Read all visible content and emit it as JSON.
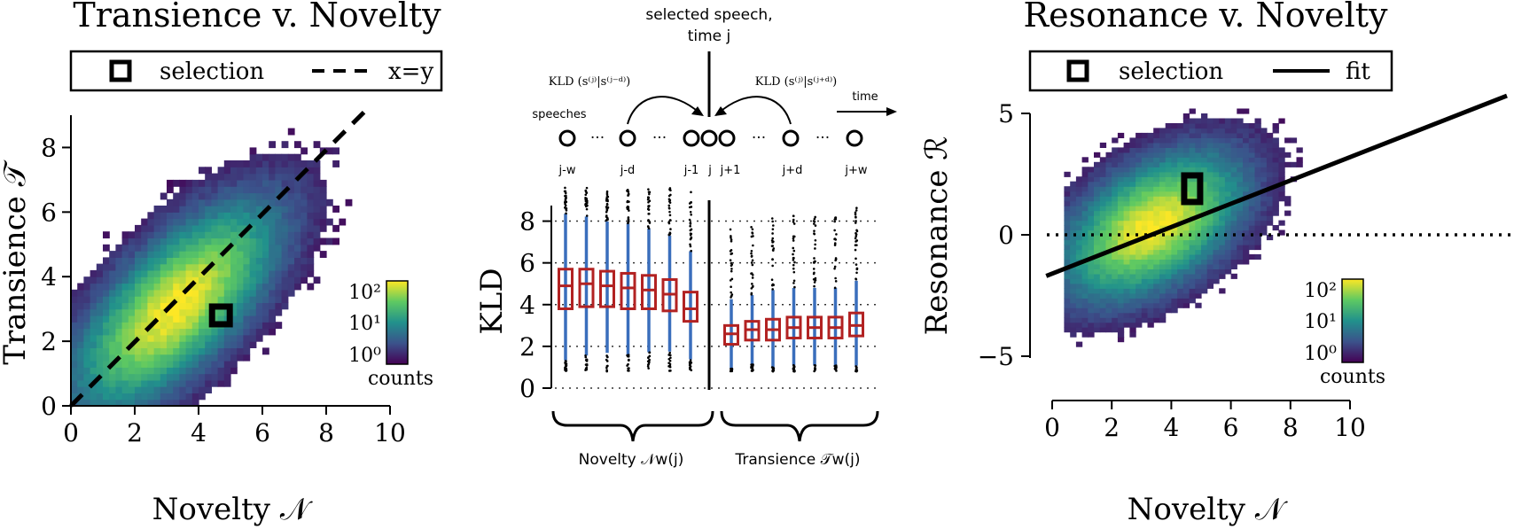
{
  "chart_data": [
    {
      "type": "heatmap",
      "title": "Transience v. Novelty",
      "xlabel": "Novelty 𝒩",
      "ylabel": "Transience 𝒯",
      "xlim": [
        0,
        10
      ],
      "ylim": [
        0,
        9
      ],
      "x_ticks": [
        "0",
        "2",
        "4",
        "6",
        "8",
        "10"
      ],
      "y_ticks": [
        "0",
        "2",
        "4",
        "6",
        "8"
      ],
      "legend": {
        "selection": "selection",
        "line": "x=y",
        "placement": "top"
      },
      "colorbar": {
        "label": "counts",
        "ticks": [
          "10²",
          "10¹",
          "10⁰"
        ],
        "scale": "log"
      },
      "density_center": [
        3.2,
        3.0
      ],
      "selection_point": [
        4.7,
        2.8
      ],
      "reference_line": "x=y",
      "grid": false
    },
    {
      "type": "box",
      "ylabel": "KLD",
      "ylim": [
        0,
        9
      ],
      "y_ticks": [
        "0",
        "2",
        "4",
        "6",
        "8"
      ],
      "header": "selected speech,\ntime j",
      "time_label": "time",
      "speeches_label": "speeches",
      "kld_left": "KLD (s⁽ʲ⁾|s⁽ʲ⁻ᵈ⁾)",
      "kld_right": "KLD (s⁽ʲ⁾|s⁽ʲ⁺ᵈ⁾)",
      "node_labels": [
        "j-w",
        "j-d",
        "j-1",
        "j",
        "j+1",
        "j+d",
        "j+w"
      ],
      "group_labels": [
        "Novelty 𝒩w(j)",
        "Transience 𝒯w(j)"
      ],
      "novelty_boxes": [
        {
          "q1": 3.8,
          "median": 4.9,
          "q3": 5.7
        },
        {
          "q1": 3.9,
          "median": 5.0,
          "q3": 5.7
        },
        {
          "q1": 3.9,
          "median": 4.9,
          "q3": 5.6
        },
        {
          "q1": 3.8,
          "median": 4.8,
          "q3": 5.5
        },
        {
          "q1": 3.8,
          "median": 4.7,
          "q3": 5.4
        },
        {
          "q1": 3.7,
          "median": 4.5,
          "q3": 5.2
        },
        {
          "q1": 3.2,
          "median": 3.8,
          "q3": 4.6
        }
      ],
      "transience_boxes": [
        {
          "q1": 2.1,
          "median": 2.6,
          "q3": 3.0
        },
        {
          "q1": 2.3,
          "median": 2.8,
          "q3": 3.2
        },
        {
          "q1": 2.3,
          "median": 2.8,
          "q3": 3.3
        },
        {
          "q1": 2.4,
          "median": 2.9,
          "q3": 3.4
        },
        {
          "q1": 2.4,
          "median": 2.9,
          "q3": 3.4
        },
        {
          "q1": 2.4,
          "median": 2.9,
          "q3": 3.4
        },
        {
          "q1": 2.5,
          "median": 3.0,
          "q3": 3.6
        }
      ],
      "grid": "horizontal dotted"
    },
    {
      "type": "heatmap",
      "title": "Resonance v. Novelty",
      "xlabel": "Novelty 𝒩",
      "ylabel": "Resonance ℛ",
      "xlim": [
        -0.3,
        10.3
      ],
      "ylim": [
        -6,
        5.5
      ],
      "x_ticks": [
        "0",
        "2",
        "4",
        "6",
        "8",
        "10"
      ],
      "y_ticks": [
        "−5",
        "0",
        "5"
      ],
      "legend": {
        "selection": "selection",
        "line": "fit",
        "placement": "top"
      },
      "colorbar": {
        "label": "counts",
        "ticks": [
          "10²",
          "10¹",
          "10⁰"
        ],
        "scale": "log"
      },
      "density_center": [
        3.3,
        0.0
      ],
      "selection_point": [
        4.7,
        1.9
      ],
      "fit_line": {
        "slope": 0.48,
        "intercept": -1.6
      },
      "grid": false
    }
  ],
  "colors": {
    "box_red": "#b22222",
    "whisker_blue": "#3a6ebc",
    "ink": "#000000"
  }
}
